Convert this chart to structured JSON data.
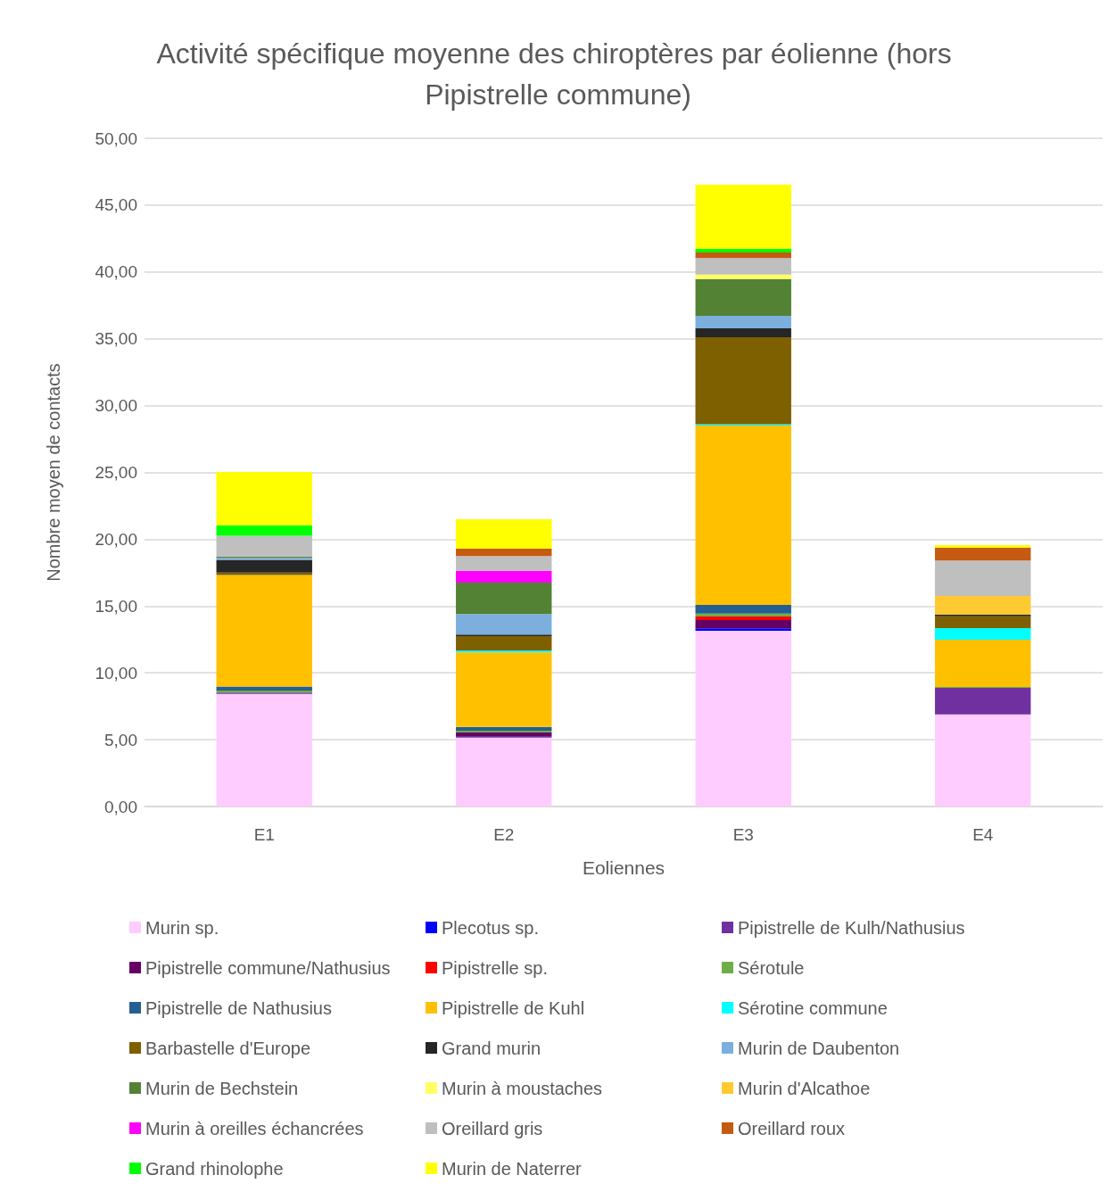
{
  "chart_data": {
    "type": "bar",
    "stacked": true,
    "title": "Activité spécifique moyenne des chiroptères par éolienne (hors Pipistrelle commune)",
    "xlabel": "Eoliennes",
    "ylabel": "Nombre moyen de contacts",
    "categories": [
      "E1",
      "E2",
      "E3",
      "E4"
    ],
    "series": [
      {
        "name": "Murin sp.",
        "color": "#ffccff",
        "values": [
          8.43,
          5.16,
          13.15,
          6.9
        ]
      },
      {
        "name": "Plecotus sp.",
        "color": "#0000ff",
        "values": [
          0,
          0,
          0.18,
          0
        ]
      },
      {
        "name": "Pipistrelle de Kulh/Nathusius",
        "color": "#7030a0",
        "values": [
          0.1,
          0.11,
          0,
          1.98
        ]
      },
      {
        "name": "Pipistrelle commune/Nathusius",
        "color": "#660066",
        "values": [
          0,
          0.27,
          0.62,
          0
        ]
      },
      {
        "name": "Pipistrelle sp.",
        "color": "#ff0000",
        "values": [
          0,
          0,
          0.27,
          0
        ]
      },
      {
        "name": "Sérotule",
        "color": "#70ad47",
        "values": [
          0.15,
          0.13,
          0.22,
          0.07
        ]
      },
      {
        "name": "Pipistrelle de Nathusius",
        "color": "#255e91",
        "values": [
          0.3,
          0.29,
          0.65,
          0
        ]
      },
      {
        "name": "Pipistrelle de Kuhl",
        "color": "#ffc000",
        "values": [
          8.35,
          5.57,
          13.41,
          3.53
        ]
      },
      {
        "name": "Sérotine commune",
        "color": "#00ffff",
        "values": [
          0,
          0.13,
          0.1,
          0.87
        ]
      },
      {
        "name": "Barbastelle d'Europe",
        "color": "#7f6000",
        "values": [
          0.18,
          1.09,
          6.51,
          0.89
        ]
      },
      {
        "name": "Grand murin",
        "color": "#262626",
        "values": [
          0.95,
          0.11,
          0.67,
          0.11
        ]
      },
      {
        "name": "Murin de Daubenton",
        "color": "#7cafdd",
        "values": [
          0.15,
          1.54,
          0.94,
          0
        ]
      },
      {
        "name": "Murin de Bechstein",
        "color": "#548235",
        "values": [
          0.1,
          2.36,
          2.73,
          0
        ]
      },
      {
        "name": "Murin à moustaches",
        "color": "#ffff66",
        "values": [
          0,
          0,
          0.36,
          0
        ]
      },
      {
        "name": "Murin d'Alcathoe",
        "color": "#ffc932",
        "values": [
          0,
          0,
          0,
          1.4
        ]
      },
      {
        "name": "Murin à oreilles échancrées",
        "color": "#ff00ff",
        "values": [
          0,
          0.86,
          0,
          0
        ]
      },
      {
        "name": "Oreillard gris",
        "color": "#bfbfbf",
        "values": [
          1.55,
          1.12,
          1.22,
          2.65
        ]
      },
      {
        "name": "Oreillard roux",
        "color": "#c55a11",
        "values": [
          0,
          0.55,
          0.42,
          0.98
        ]
      },
      {
        "name": "Grand rhinolophe",
        "color": "#00ff00",
        "values": [
          0.78,
          0,
          0.27,
          0
        ]
      },
      {
        "name": "Murin de Naterrer",
        "color": "#ffff00",
        "values": [
          4.0,
          2.2,
          4.81,
          0.18
        ]
      }
    ],
    "ylim": [
      0,
      50
    ],
    "yticks": [
      {
        "value": 0,
        "label": "0,00"
      },
      {
        "value": 5,
        "label": "5,00"
      },
      {
        "value": 10,
        "label": "10,00"
      },
      {
        "value": 15,
        "label": "15,00"
      },
      {
        "value": 20,
        "label": "20,00"
      },
      {
        "value": 25,
        "label": "25,00"
      },
      {
        "value": 30,
        "label": "30,00"
      },
      {
        "value": 35,
        "label": "35,00"
      },
      {
        "value": 40,
        "label": "40,00"
      },
      {
        "value": 45,
        "label": "45,00"
      },
      {
        "value": 50,
        "label": "50,00"
      }
    ],
    "grid": "y",
    "legend": "bottom"
  }
}
